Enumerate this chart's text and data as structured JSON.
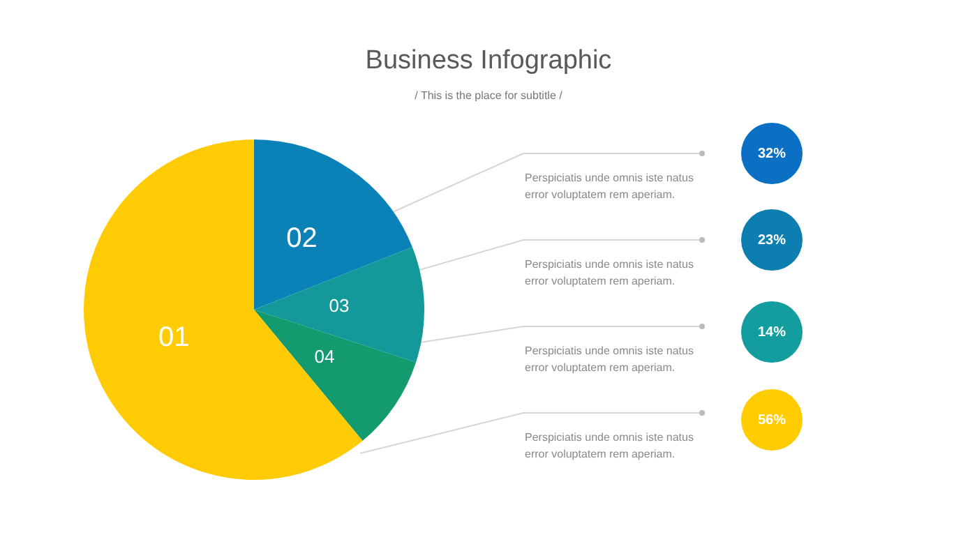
{
  "chart_data": {
    "type": "pie",
    "title": "Business Infographic",
    "subtitle": "/ This is the place for subtitle /",
    "categories": [
      "02",
      "03",
      "04",
      "01"
    ],
    "values": [
      19,
      11,
      9,
      61
    ],
    "colors": [
      "#0a82b8",
      "#14999b",
      "#139a6e",
      "#ffcb05"
    ],
    "annotations": [
      "Perspiciatis unde omnis iste natus error voluptatem rem aperiam.",
      "Perspiciatis unde omnis iste natus error voluptatem rem aperiam.",
      "Perspiciatis unde omnis iste natus error voluptatem rem aperiam.",
      "Perspiciatis unde omnis iste natus error voluptatem rem aperiam.",
      "32%",
      "23%",
      "14%",
      "56%"
    ]
  }
}
